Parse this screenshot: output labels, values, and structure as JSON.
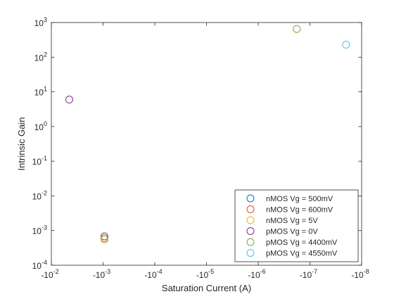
{
  "chart_data": {
    "type": "scatter",
    "xlabel": "Saturation Current (A)",
    "ylabel": "Intrinsic Gain",
    "x_scale": "log",
    "x_reversed": true,
    "y_scale": "log",
    "xlim_magnitude": [
      1e-08,
      0.01
    ],
    "ylim": [
      0.0001,
      1000.0
    ],
    "x_ticks": [
      {
        "mantissa": "-10",
        "exp": "-2"
      },
      {
        "mantissa": "-10",
        "exp": "-3"
      },
      {
        "mantissa": "-10",
        "exp": "-4"
      },
      {
        "mantissa": "-10",
        "exp": "-5"
      },
      {
        "mantissa": "-10",
        "exp": "-6"
      },
      {
        "mantissa": "-10",
        "exp": "-7"
      },
      {
        "mantissa": "-10",
        "exp": "-8"
      }
    ],
    "y_ticks": [
      {
        "mantissa": "10",
        "exp": "3"
      },
      {
        "mantissa": "10",
        "exp": "2"
      },
      {
        "mantissa": "10",
        "exp": "1"
      },
      {
        "mantissa": "10",
        "exp": "0"
      },
      {
        "mantissa": "10",
        "exp": "-1"
      },
      {
        "mantissa": "10",
        "exp": "-2"
      },
      {
        "mantissa": "10",
        "exp": "-3"
      },
      {
        "mantissa": "10",
        "exp": "-4"
      }
    ],
    "legend_position": "bottom-right",
    "grid": false,
    "series": [
      {
        "name": "nMOS Vg = 500mV",
        "color": "#0072BD",
        "points": [
          {
            "x": -0.00094,
            "y": 0.00068
          }
        ]
      },
      {
        "name": "nMOS Vg = 600mV",
        "color": "#D95319",
        "points": [
          {
            "x": -0.00094,
            "y": 0.0006
          }
        ]
      },
      {
        "name": "nMOS Vg = 5V",
        "color": "#EDB120",
        "points": [
          {
            "x": -0.00094,
            "y": 0.00055
          }
        ]
      },
      {
        "name": "pMOS Vg = 0V",
        "color": "#7E2F8E",
        "points": [
          {
            "x": -0.0045,
            "y": 6.0
          }
        ]
      },
      {
        "name": "pMOS Vg = 4400mV",
        "color": "#77AC30",
        "points": [
          {
            "x": -1.8e-07,
            "y": 650
          }
        ]
      },
      {
        "name": "pMOS Vg = 4550mV",
        "color": "#4DBEEE",
        "points": [
          {
            "x": -2e-08,
            "y": 230
          }
        ]
      }
    ]
  }
}
